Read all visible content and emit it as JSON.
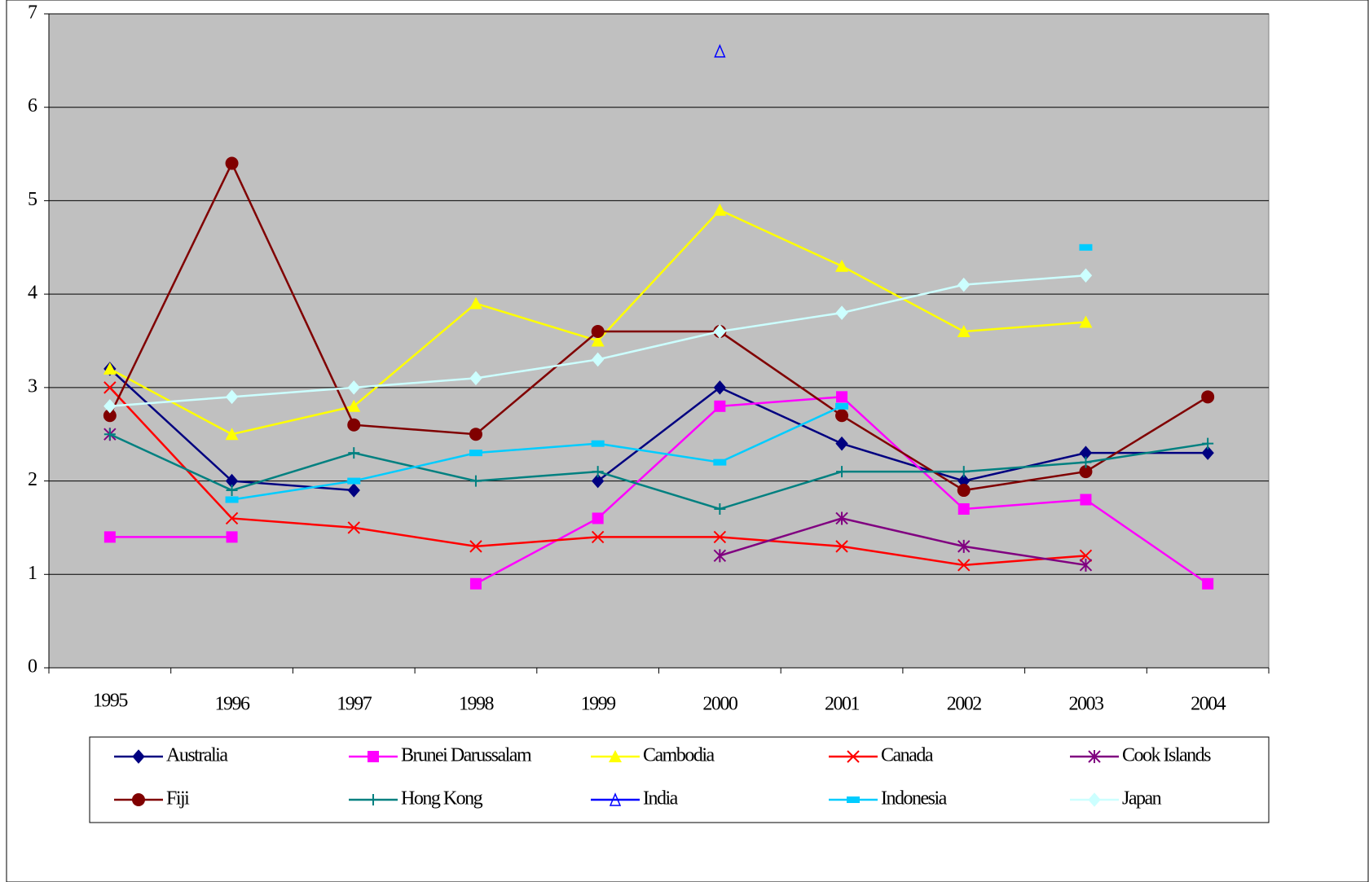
{
  "chart_data": {
    "type": "line",
    "categories": [
      "1995",
      "1996",
      "1997",
      "1998",
      "1999",
      "2000",
      "2001",
      "2002",
      "2003",
      "2004"
    ],
    "ylim": [
      0,
      7
    ],
    "yticks": [
      0,
      1,
      2,
      3,
      4,
      5,
      6,
      7
    ],
    "grid": true,
    "legend": "bottom",
    "series": [
      {
        "name": "Australia",
        "color": "#000080",
        "marker": "diamond",
        "values": [
          3.2,
          2.0,
          1.9,
          null,
          2.0,
          3.0,
          2.4,
          2.0,
          2.3,
          2.3
        ]
      },
      {
        "name": "Brunei Darussalam",
        "color": "#ff00ff",
        "marker": "square",
        "values": [
          1.4,
          1.4,
          null,
          0.9,
          1.6,
          2.8,
          2.9,
          1.7,
          1.8,
          0.9
        ]
      },
      {
        "name": "Cambodia",
        "color": "#ffff00",
        "marker": "triangle",
        "values": [
          3.2,
          2.5,
          2.8,
          3.9,
          3.5,
          4.9,
          4.3,
          3.6,
          3.7,
          null
        ]
      },
      {
        "name": "Canada",
        "color": "#ff0000",
        "marker": "x",
        "values": [
          3.0,
          1.6,
          1.5,
          1.3,
          1.4,
          1.4,
          1.3,
          1.1,
          1.2,
          null
        ]
      },
      {
        "name": "Cook Islands",
        "color": "#800080",
        "marker": "star",
        "values": [
          2.5,
          null,
          null,
          null,
          null,
          1.2,
          1.6,
          1.3,
          1.1,
          null
        ]
      },
      {
        "name": "Fiji",
        "color": "#800000",
        "marker": "circle",
        "values": [
          2.7,
          5.4,
          2.6,
          2.5,
          3.6,
          3.6,
          2.7,
          1.9,
          2.1,
          2.9
        ]
      },
      {
        "name": "Hong Kong",
        "color": "#008080",
        "marker": "plus",
        "values": [
          2.5,
          1.9,
          2.3,
          2.0,
          2.1,
          1.7,
          2.1,
          2.1,
          2.2,
          2.4
        ]
      },
      {
        "name": "India",
        "color": "#0000ff",
        "marker": "open-triangle",
        "values": [
          null,
          null,
          null,
          null,
          null,
          6.6,
          null,
          null,
          null,
          null
        ]
      },
      {
        "name": "Indonesia",
        "color": "#00ccff",
        "marker": "dash",
        "values": [
          null,
          1.8,
          2.0,
          2.3,
          2.4,
          2.2,
          2.8,
          null,
          4.5,
          null
        ]
      },
      {
        "name": "Japan",
        "color": "#ccffff",
        "marker": "diamond",
        "values": [
          2.8,
          2.9,
          3.0,
          3.1,
          3.3,
          3.6,
          3.8,
          4.1,
          4.2,
          null
        ]
      }
    ]
  }
}
